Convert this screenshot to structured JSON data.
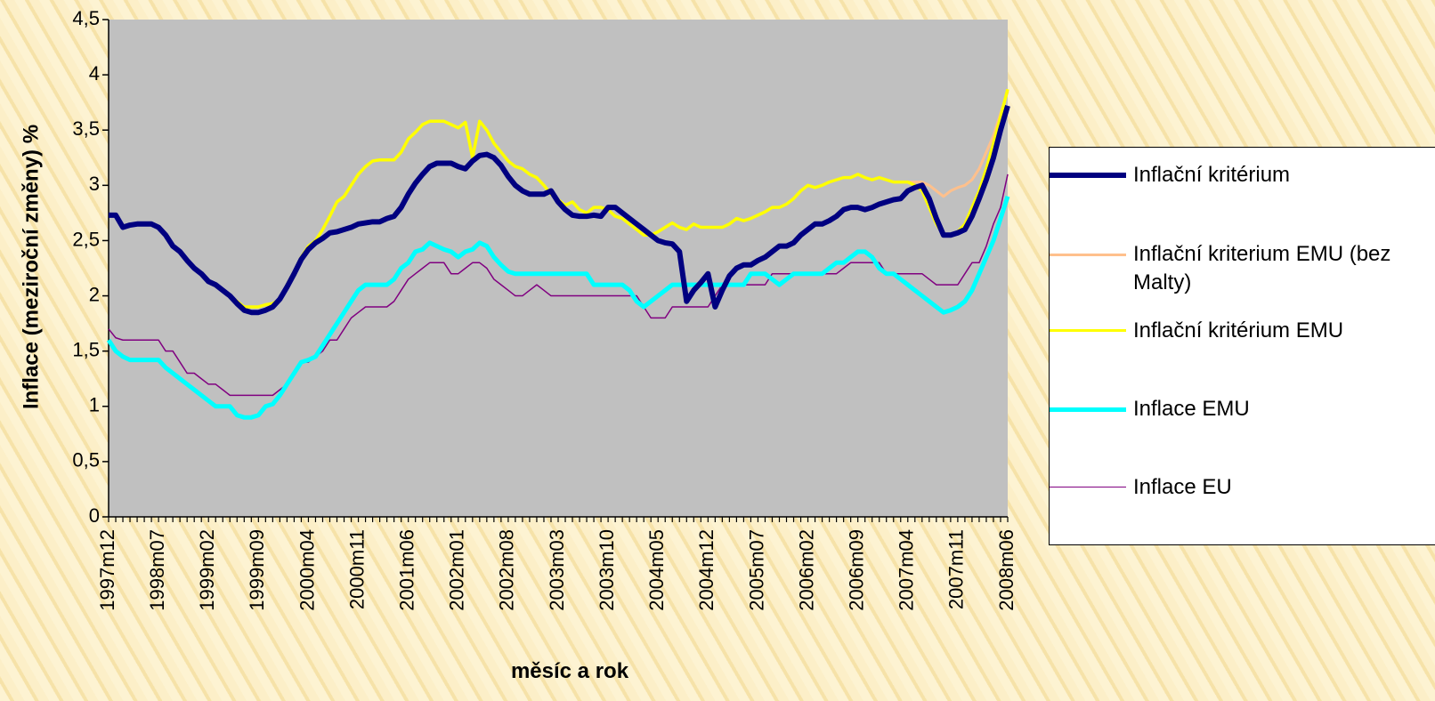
{
  "chart_data": {
    "type": "line",
    "x_label": "měsíc a rok",
    "y_label": "Inflace (meziroční změny) %",
    "categories": [
      "1997m12",
      null,
      null,
      null,
      null,
      null,
      null,
      "1998m07",
      null,
      null,
      null,
      null,
      null,
      null,
      "1999m02",
      null,
      null,
      null,
      null,
      null,
      null,
      "1999m09",
      null,
      null,
      null,
      null,
      null,
      null,
      "2000m04",
      null,
      null,
      null,
      null,
      null,
      null,
      "2000m11",
      null,
      null,
      null,
      null,
      null,
      null,
      "2001m06",
      null,
      null,
      null,
      null,
      null,
      null,
      "2002m01",
      null,
      null,
      null,
      null,
      null,
      null,
      "2002m08",
      null,
      null,
      null,
      null,
      null,
      null,
      "2003m03",
      null,
      null,
      null,
      null,
      null,
      null,
      "2003m10",
      null,
      null,
      null,
      null,
      null,
      null,
      "2004m05",
      null,
      null,
      null,
      null,
      null,
      null,
      "2004m12",
      null,
      null,
      null,
      null,
      null,
      null,
      "2005m07",
      null,
      null,
      null,
      null,
      null,
      null,
      "2006m02",
      null,
      null,
      null,
      null,
      null,
      null,
      "2006m09",
      null,
      null,
      null,
      null,
      null,
      null,
      "2007m04",
      null,
      null,
      null,
      null,
      null,
      null,
      "2007m11",
      null,
      null,
      null,
      null,
      null,
      null,
      "2008m06"
    ],
    "ylim": [
      0,
      4.5
    ],
    "yticks": [
      0,
      {
        "value": 0.5,
        "label": "0,5"
      },
      1,
      {
        "value": 1.5,
        "label": "1,5"
      },
      2,
      {
        "value": 2.5,
        "label": "2,5"
      },
      3,
      {
        "value": 3.5,
        "label": "3,5"
      },
      4,
      {
        "value": 4.5,
        "label": "4,5"
      }
    ],
    "grid": false,
    "legend": "right",
    "series": [
      {
        "name": "Inflační kritérium",
        "color": "#000080",
        "values": [
          2.73,
          2.73,
          2.62,
          2.64,
          2.65,
          2.65,
          2.65,
          2.62,
          2.55,
          2.45,
          2.4,
          2.32,
          2.25,
          2.2,
          2.13,
          2.1,
          2.05,
          2.0,
          1.93,
          1.87,
          1.85,
          1.85,
          1.87,
          1.9,
          1.97,
          2.08,
          2.2,
          2.33,
          2.42,
          2.48,
          2.52,
          2.57,
          2.58,
          2.6,
          2.62,
          2.65,
          2.66,
          2.67,
          2.67,
          2.7,
          2.72,
          2.8,
          2.92,
          3.02,
          3.1,
          3.17,
          3.2,
          3.2,
          3.2,
          3.17,
          3.15,
          3.22,
          3.27,
          3.28,
          3.25,
          3.18,
          3.08,
          3.0,
          2.95,
          2.92,
          2.92,
          2.92,
          2.95,
          2.85,
          2.78,
          2.73,
          2.72,
          2.72,
          2.73,
          2.72,
          2.8,
          2.8,
          2.75,
          2.7,
          2.65,
          2.6,
          2.55,
          2.5,
          2.48,
          2.47,
          2.4,
          1.95,
          2.05,
          2.12,
          2.2,
          1.9,
          2.05,
          2.18,
          2.25,
          2.28,
          2.28,
          2.32,
          2.35,
          2.4,
          2.45,
          2.45,
          2.48,
          2.55,
          2.6,
          2.65,
          2.65,
          2.68,
          2.72,
          2.78,
          2.8,
          2.8,
          2.78,
          2.8,
          2.83,
          2.85,
          2.87,
          2.88,
          2.95,
          2.98,
          3.0,
          2.88,
          2.7,
          2.55,
          2.55,
          2.57,
          2.6,
          2.72,
          2.88,
          3.05,
          3.25,
          3.5,
          3.72
        ]
      },
      {
        "name": "Inflační kriterium EMU (bez Malty)",
        "color": "#ffc08c",
        "values": [
          2.73,
          2.73,
          2.62,
          2.64,
          2.65,
          2.65,
          2.65,
          2.62,
          2.55,
          2.45,
          2.4,
          2.32,
          2.25,
          2.2,
          2.13,
          2.1,
          2.05,
          2.0,
          1.95,
          1.9,
          1.9,
          1.9,
          1.92,
          1.93,
          1.97,
          2.1,
          2.22,
          2.35,
          2.45,
          2.5,
          2.6,
          2.72,
          2.85,
          2.9,
          3.0,
          3.1,
          3.17,
          3.22,
          3.23,
          3.23,
          3.23,
          3.3,
          3.42,
          3.48,
          3.55,
          3.58,
          3.58,
          3.58,
          3.55,
          3.52,
          3.57,
          3.25,
          3.58,
          3.5,
          3.38,
          3.3,
          3.22,
          3.17,
          3.15,
          3.1,
          3.07,
          3.0,
          2.92,
          2.87,
          2.82,
          2.85,
          2.78,
          2.75,
          2.8,
          2.8,
          2.78,
          2.72,
          2.7,
          2.65,
          2.6,
          2.55,
          2.55,
          2.58,
          2.62,
          2.66,
          2.62,
          2.6,
          2.65,
          2.62,
          2.62,
          2.62,
          2.62,
          2.65,
          2.7,
          2.68,
          2.7,
          2.73,
          2.76,
          2.8,
          2.8,
          2.83,
          2.88,
          2.95,
          3.0,
          2.98,
          3.0,
          3.03,
          3.05,
          3.07,
          3.07,
          3.1,
          3.07,
          3.05,
          3.07,
          3.05,
          3.03,
          3.03,
          3.03,
          3.03,
          3.03,
          3.0,
          2.95,
          2.9,
          2.95,
          2.98,
          3.0,
          3.05,
          3.15,
          3.3,
          3.45,
          3.65,
          3.85
        ]
      },
      {
        "name": "Inflační kritérium EMU",
        "color": "#ffff00",
        "values": [
          2.73,
          2.73,
          2.62,
          2.64,
          2.65,
          2.65,
          2.65,
          2.62,
          2.55,
          2.45,
          2.4,
          2.32,
          2.25,
          2.2,
          2.13,
          2.1,
          2.05,
          2.0,
          1.95,
          1.9,
          1.9,
          1.9,
          1.92,
          1.93,
          1.97,
          2.1,
          2.22,
          2.35,
          2.45,
          2.5,
          2.6,
          2.72,
          2.85,
          2.9,
          3.0,
          3.1,
          3.17,
          3.22,
          3.23,
          3.23,
          3.23,
          3.3,
          3.42,
          3.48,
          3.55,
          3.58,
          3.58,
          3.58,
          3.55,
          3.52,
          3.57,
          3.25,
          3.58,
          3.5,
          3.38,
          3.3,
          3.22,
          3.17,
          3.15,
          3.1,
          3.07,
          3.0,
          2.92,
          2.87,
          2.82,
          2.85,
          2.78,
          2.75,
          2.8,
          2.8,
          2.78,
          2.72,
          2.7,
          2.65,
          2.6,
          2.55,
          2.55,
          2.58,
          2.62,
          2.66,
          2.62,
          2.6,
          2.65,
          2.62,
          2.62,
          2.62,
          2.62,
          2.65,
          2.7,
          2.68,
          2.7,
          2.73,
          2.76,
          2.8,
          2.8,
          2.83,
          2.88,
          2.95,
          3.0,
          2.98,
          3.0,
          3.03,
          3.05,
          3.07,
          3.07,
          3.1,
          3.07,
          3.05,
          3.07,
          3.05,
          3.03,
          3.03,
          3.03,
          3.0,
          2.95,
          2.8,
          2.65,
          2.55,
          2.55,
          2.58,
          2.65,
          2.8,
          2.95,
          3.15,
          3.38,
          3.62,
          3.87
        ]
      },
      {
        "name": "Inflace EMU",
        "color": "#00ffff",
        "values": [
          1.6,
          1.5,
          1.45,
          1.42,
          1.42,
          1.42,
          1.42,
          1.42,
          1.35,
          1.3,
          1.25,
          1.2,
          1.15,
          1.1,
          1.05,
          1.0,
          1.0,
          1.0,
          0.92,
          0.9,
          0.9,
          0.92,
          1.0,
          1.02,
          1.1,
          1.2,
          1.3,
          1.4,
          1.42,
          1.45,
          1.55,
          1.65,
          1.75,
          1.85,
          1.95,
          2.05,
          2.1,
          2.1,
          2.1,
          2.1,
          2.15,
          2.25,
          2.3,
          2.4,
          2.42,
          2.48,
          2.45,
          2.42,
          2.4,
          2.35,
          2.4,
          2.42,
          2.48,
          2.45,
          2.35,
          2.28,
          2.22,
          2.2,
          2.2,
          2.2,
          2.2,
          2.2,
          2.2,
          2.2,
          2.2,
          2.2,
          2.2,
          2.2,
          2.1,
          2.1,
          2.1,
          2.1,
          2.1,
          2.05,
          1.95,
          1.9,
          1.95,
          2.0,
          2.05,
          2.1,
          2.1,
          2.1,
          2.1,
          2.1,
          2.1,
          2.1,
          2.1,
          2.1,
          2.1,
          2.1,
          2.2,
          2.2,
          2.2,
          2.15,
          2.1,
          2.15,
          2.2,
          2.2,
          2.2,
          2.2,
          2.2,
          2.25,
          2.3,
          2.3,
          2.35,
          2.4,
          2.4,
          2.35,
          2.25,
          2.2,
          2.2,
          2.15,
          2.1,
          2.05,
          2.0,
          1.95,
          1.9,
          1.85,
          1.87,
          1.9,
          1.95,
          2.05,
          2.2,
          2.35,
          2.5,
          2.7,
          2.9
        ]
      },
      {
        "name": "Inflace EU",
        "color": "#800080",
        "values": [
          1.7,
          1.62,
          1.6,
          1.6,
          1.6,
          1.6,
          1.6,
          1.6,
          1.5,
          1.5,
          1.4,
          1.3,
          1.3,
          1.25,
          1.2,
          1.2,
          1.15,
          1.1,
          1.1,
          1.1,
          1.1,
          1.1,
          1.1,
          1.1,
          1.15,
          1.2,
          1.3,
          1.4,
          1.4,
          1.45,
          1.5,
          1.6,
          1.6,
          1.7,
          1.8,
          1.85,
          1.9,
          1.9,
          1.9,
          1.9,
          1.95,
          2.05,
          2.15,
          2.2,
          2.25,
          2.3,
          2.3,
          2.3,
          2.2,
          2.2,
          2.25,
          2.3,
          2.3,
          2.25,
          2.15,
          2.1,
          2.05,
          2.0,
          2.0,
          2.05,
          2.1,
          2.05,
          2.0,
          2.0,
          2.0,
          2.0,
          2.0,
          2.0,
          2.0,
          2.0,
          2.0,
          2.0,
          2.0,
          2.0,
          2.0,
          1.9,
          1.8,
          1.8,
          1.8,
          1.9,
          1.9,
          1.9,
          1.9,
          1.9,
          1.9,
          2.0,
          2.1,
          2.1,
          2.1,
          2.1,
          2.1,
          2.1,
          2.1,
          2.2,
          2.2,
          2.2,
          2.2,
          2.2,
          2.2,
          2.2,
          2.2,
          2.2,
          2.2,
          2.25,
          2.3,
          2.3,
          2.3,
          2.3,
          2.3,
          2.2,
          2.2,
          2.2,
          2.2,
          2.2,
          2.2,
          2.15,
          2.1,
          2.1,
          2.1,
          2.1,
          2.2,
          2.3,
          2.3,
          2.45,
          2.65,
          2.8,
          3.1
        ]
      }
    ]
  }
}
